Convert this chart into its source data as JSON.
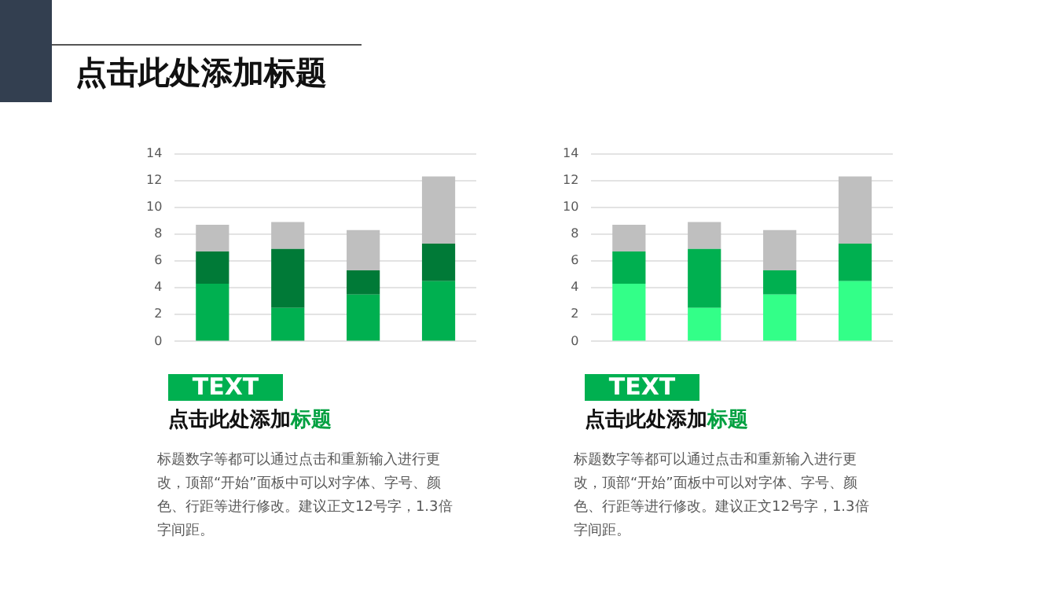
{
  "chart_data": [
    {
      "type": "bar",
      "title": "点击此处添加标题",
      "categories": [
        null,
        null,
        null,
        null
      ],
      "stacked": true,
      "tick_labels": "y",
      "grid": "y",
      "legend": false,
      "ylim": [
        0,
        14
      ],
      "yticks": [
        0,
        2,
        4,
        6,
        8,
        10,
        12,
        14
      ],
      "series": [
        {
          "color": "#00b050",
          "values": [
            4.3,
            2.5,
            3.5,
            4.5
          ]
        },
        {
          "color": "#007a37",
          "values": [
            2.4,
            4.4,
            1.8,
            2.8
          ]
        },
        {
          "color": "#bfbfbf",
          "values": [
            2,
            2,
            3,
            5
          ]
        }
      ],
      "annotations": [
        "TEXT",
        "点击此处添加标题",
        "标题数字等都可以通过点击和重新输入进行更改，顶部“开始”面板中可以对字体、字号、颜色、行距等进行修改。建议正文12号字，1.3倍字间距。"
      ]
    },
    {
      "type": "bar",
      "categories": [
        null,
        null,
        null,
        null
      ],
      "stacked": true,
      "tick_labels": "y",
      "grid": "y",
      "legend": false,
      "ylim": [
        0,
        14
      ],
      "yticks": [
        0,
        2,
        4,
        6,
        8,
        10,
        12,
        14
      ],
      "series": [
        {
          "color": "#33ff88",
          "values": [
            4.3,
            2.5,
            3.5,
            4.5
          ]
        },
        {
          "color": "#00b050",
          "values": [
            2.4,
            4.4,
            1.8,
            2.8
          ]
        },
        {
          "color": "#bfbfbf",
          "values": [
            2,
            2,
            3,
            5
          ]
        }
      ],
      "annotations": [
        "TEXT",
        "点击此处添加标题",
        "标题数字等都可以通过点击和重新输入进行更改，顶部“开始”面板中可以对字体、字号、颜色、行距等进行修改。建议正文12号字，1.3倍字间距。"
      ]
    }
  ]
}
